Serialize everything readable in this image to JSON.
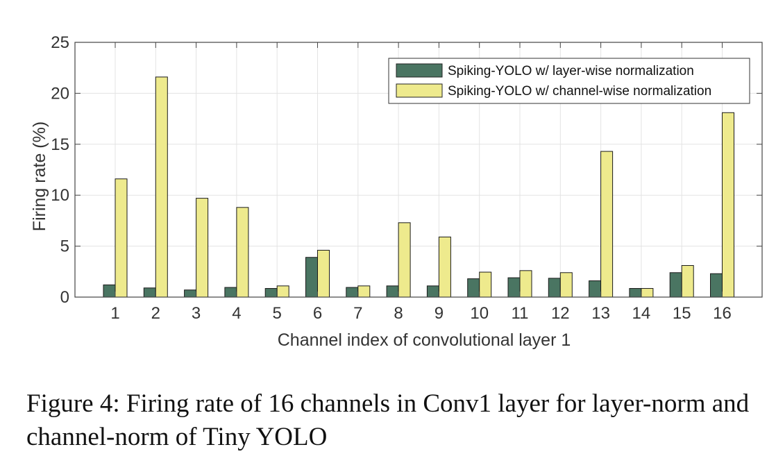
{
  "chart_data": {
    "type": "bar",
    "categories": [
      "1",
      "2",
      "3",
      "4",
      "5",
      "6",
      "7",
      "8",
      "9",
      "10",
      "11",
      "12",
      "13",
      "14",
      "15",
      "16"
    ],
    "series": [
      {
        "name": "Spiking-YOLO w/ layer-wise normalization",
        "color": "#4a7562",
        "values": [
          1.2,
          0.9,
          0.7,
          0.95,
          0.85,
          3.9,
          0.95,
          1.1,
          1.1,
          1.8,
          1.9,
          1.85,
          1.6,
          0.85,
          2.4,
          2.3
        ]
      },
      {
        "name": "Spiking-YOLO w/ channel-wise normalization",
        "color": "#eeea8d",
        "values": [
          11.6,
          21.6,
          9.7,
          8.8,
          1.1,
          4.6,
          1.1,
          7.3,
          5.9,
          2.45,
          2.6,
          2.4,
          14.3,
          0.85,
          3.1,
          18.1
        ]
      }
    ],
    "xlabel": "Channel index of convolutional layer 1",
    "ylabel": "Firing rate (%)",
    "ylim": [
      0,
      25
    ],
    "yticks": [
      0,
      5,
      10,
      15,
      20,
      25
    ],
    "grid": true,
    "legend_position": "top-right"
  },
  "caption": "Figure 4: Firing rate of 16 channels in Conv1 layer for layer-norm and channel-norm of Tiny YOLO"
}
